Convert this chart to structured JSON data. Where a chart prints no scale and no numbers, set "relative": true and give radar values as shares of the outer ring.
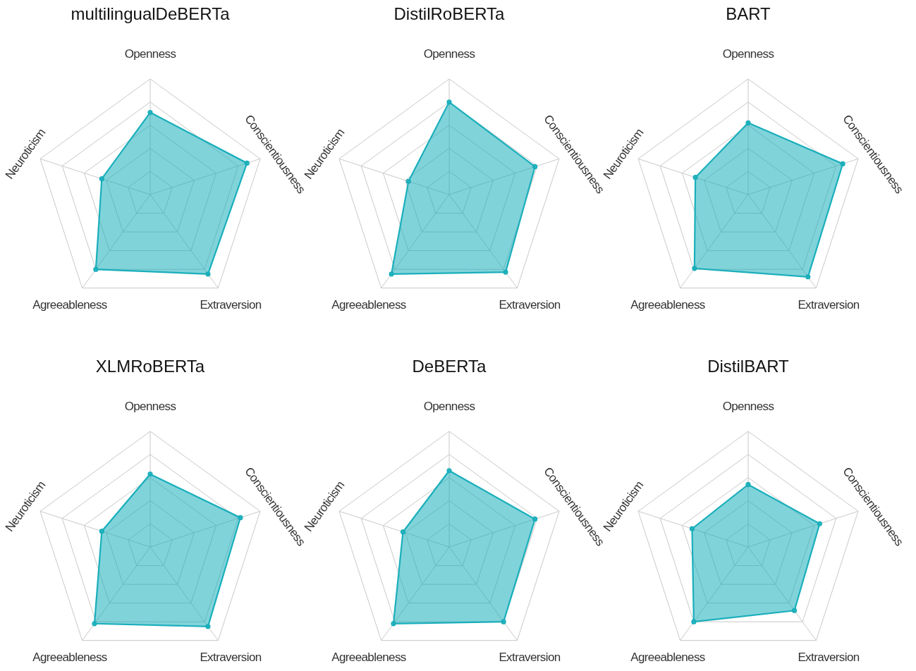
{
  "chart_data": [
    {
      "type": "radar",
      "title": "multilingualDeBERTa",
      "categories": [
        "Openness",
        "Conscientiousness",
        "Extraversion",
        "Agreeableness",
        "Neuroticism"
      ],
      "relative": true,
      "grid": true,
      "marker": "circle",
      "series": [
        {
          "color": "#1aafbb",
          "values": [
            0.71,
            0.88,
            0.85,
            0.8,
            0.44
          ]
        }
      ]
    },
    {
      "type": "radar",
      "title": "DistilRoBERTa",
      "categories": [
        "Openness",
        "Conscientiousness",
        "Extraversion",
        "Agreeableness",
        "Neuroticism"
      ],
      "relative": true,
      "grid": true,
      "marker": "circle",
      "series": [
        {
          "color": "#1aafbb",
          "values": [
            0.8,
            0.78,
            0.83,
            0.85,
            0.37
          ]
        }
      ]
    },
    {
      "type": "radar",
      "title": "BART",
      "categories": [
        "Openness",
        "Conscientiousness",
        "Extraversion",
        "Agreeableness",
        "Neuroticism"
      ],
      "relative": true,
      "grid": true,
      "marker": "circle",
      "series": [
        {
          "color": "#1aafbb",
          "values": [
            0.62,
            0.86,
            0.88,
            0.79,
            0.48
          ]
        }
      ]
    },
    {
      "type": "radar",
      "title": "XLMRoBERTa",
      "categories": [
        "Openness",
        "Conscientiousness",
        "Extraversion",
        "Agreeableness",
        "Neuroticism"
      ],
      "relative": true,
      "grid": true,
      "marker": "circle",
      "series": [
        {
          "color": "#1aafbb",
          "values": [
            0.63,
            0.82,
            0.85,
            0.82,
            0.44
          ]
        }
      ]
    },
    {
      "type": "radar",
      "title": "DeBERTa",
      "categories": [
        "Openness",
        "Conscientiousness",
        "Extraversion",
        "Agreeableness",
        "Neuroticism"
      ],
      "relative": true,
      "grid": true,
      "marker": "circle",
      "series": [
        {
          "color": "#1aafbb",
          "values": [
            0.66,
            0.78,
            0.8,
            0.82,
            0.42
          ]
        }
      ]
    },
    {
      "type": "radar",
      "title": "DistilBART",
      "categories": [
        "Openness",
        "Conscientiousness",
        "Extraversion",
        "Agreeableness",
        "Neuroticism"
      ],
      "relative": true,
      "grid": true,
      "marker": "circle",
      "series": [
        {
          "color": "#1aafbb",
          "values": [
            0.54,
            0.65,
            0.68,
            0.8,
            0.51
          ]
        }
      ]
    }
  ]
}
